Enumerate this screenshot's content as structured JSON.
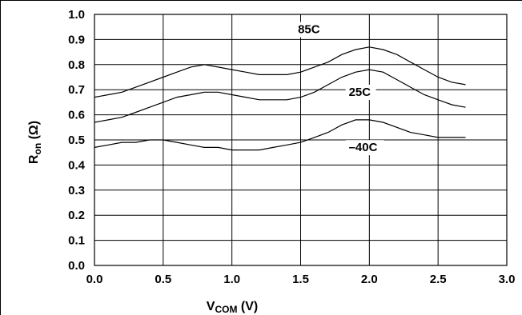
{
  "chart_data": {
    "type": "line",
    "title": "",
    "xlabel": {
      "main": "V",
      "sub": "COM",
      "suffix": " (V)"
    },
    "ylabel": {
      "main": "R",
      "sub": "on",
      "suffix": " (Ω)"
    },
    "xlim": [
      0,
      3
    ],
    "ylim": [
      0,
      1
    ],
    "xticks": [
      0,
      0.5,
      1,
      1.5,
      2,
      2.5,
      3
    ],
    "yticks": [
      0,
      0.1,
      0.2,
      0.3,
      0.4,
      0.5,
      0.6,
      0.7,
      0.8,
      0.9,
      1.0
    ],
    "xtick_labels": [
      "0.0",
      "0.5",
      "1.0",
      "1.5",
      "2.0",
      "2.5",
      "3.0"
    ],
    "ytick_labels": [
      "0.0",
      "0.1",
      "0.2",
      "0.3",
      "0.4",
      "0.5",
      "0.6",
      "0.7",
      "0.8",
      "0.9",
      "1.0"
    ],
    "grid": true,
    "series": [
      {
        "name": "85C",
        "label_at": [
          1.48,
          0.925
        ],
        "x": [
          0,
          0.1,
          0.2,
          0.3,
          0.4,
          0.5,
          0.6,
          0.7,
          0.8,
          0.9,
          1.0,
          1.1,
          1.2,
          1.3,
          1.4,
          1.5,
          1.6,
          1.7,
          1.8,
          1.9,
          2.0,
          2.1,
          2.2,
          2.3,
          2.4,
          2.5,
          2.6,
          2.7
        ],
        "values": [
          0.67,
          0.68,
          0.69,
          0.71,
          0.73,
          0.75,
          0.77,
          0.79,
          0.8,
          0.79,
          0.78,
          0.77,
          0.76,
          0.76,
          0.76,
          0.77,
          0.79,
          0.81,
          0.84,
          0.86,
          0.87,
          0.86,
          0.84,
          0.81,
          0.78,
          0.75,
          0.73,
          0.72
        ]
      },
      {
        "name": "25C",
        "label_at": [
          1.85,
          0.675
        ],
        "x": [
          0,
          0.1,
          0.2,
          0.3,
          0.4,
          0.5,
          0.6,
          0.7,
          0.8,
          0.9,
          1.0,
          1.1,
          1.2,
          1.3,
          1.4,
          1.5,
          1.6,
          1.7,
          1.8,
          1.9,
          2.0,
          2.1,
          2.2,
          2.3,
          2.4,
          2.5,
          2.6,
          2.7
        ],
        "values": [
          0.57,
          0.58,
          0.59,
          0.61,
          0.63,
          0.65,
          0.67,
          0.68,
          0.69,
          0.69,
          0.68,
          0.67,
          0.66,
          0.66,
          0.66,
          0.67,
          0.69,
          0.72,
          0.75,
          0.77,
          0.78,
          0.77,
          0.74,
          0.71,
          0.68,
          0.66,
          0.64,
          0.63
        ]
      },
      {
        "name": "–40C",
        "label_at": [
          1.85,
          0.455
        ],
        "x": [
          0,
          0.1,
          0.2,
          0.3,
          0.4,
          0.5,
          0.6,
          0.7,
          0.8,
          0.9,
          1.0,
          1.1,
          1.2,
          1.3,
          1.4,
          1.5,
          1.6,
          1.7,
          1.8,
          1.9,
          2.0,
          2.1,
          2.2,
          2.3,
          2.4,
          2.5,
          2.6,
          2.7
        ],
        "values": [
          0.47,
          0.48,
          0.49,
          0.49,
          0.5,
          0.5,
          0.49,
          0.48,
          0.47,
          0.47,
          0.46,
          0.46,
          0.46,
          0.47,
          0.48,
          0.49,
          0.51,
          0.53,
          0.56,
          0.58,
          0.58,
          0.57,
          0.55,
          0.53,
          0.52,
          0.51,
          0.51,
          0.51
        ]
      }
    ]
  }
}
